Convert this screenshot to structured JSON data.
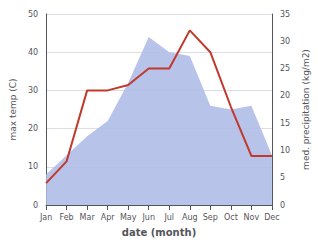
{
  "chart_data": {
    "type": "line",
    "xlabel": "date (month)",
    "ylabel": "max temp (C)",
    "y2label": "med. precipitation (kg/m2)",
    "categories": [
      "Jan",
      "Feb",
      "Mar",
      "Apr",
      "May",
      "Jun",
      "Jul",
      "Aug",
      "Sep",
      "Oct",
      "Nov",
      "Dec"
    ],
    "series": [
      {
        "type": "area",
        "color": "#b0bce8",
        "values": [
          8,
          13,
          18,
          22,
          32,
          44,
          40,
          39,
          26,
          25,
          26,
          13
        ]
      },
      {
        "type": "line",
        "color": "#c0392b",
        "axis": "y2",
        "values": [
          4,
          8,
          21,
          21,
          22,
          25,
          25,
          32,
          28,
          18,
          9,
          9
        ]
      }
    ],
    "ylim": [
      0,
      50
    ],
    "yticks": [
      0,
      10,
      20,
      30,
      40,
      50
    ],
    "y2lim": [
      0,
      35
    ],
    "y2ticks": [
      0,
      5,
      10,
      15,
      20,
      25,
      30,
      35
    ],
    "grid": true
  }
}
